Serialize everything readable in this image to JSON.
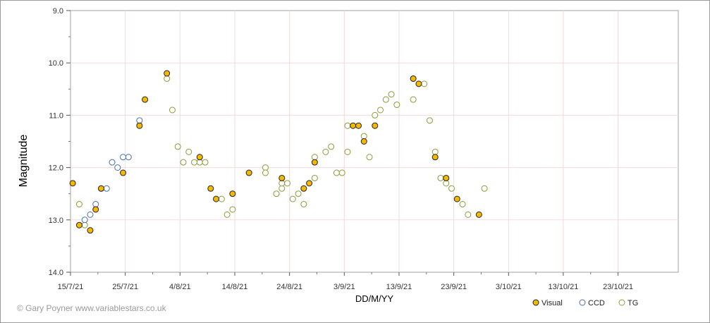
{
  "credit": "© Gary Poyner www.variablestars.co.uk",
  "chart_data": {
    "type": "scatter",
    "xlabel": "DD/M/YY",
    "ylabel": "Magnitude",
    "ylim": [
      9.0,
      14.0
    ],
    "y_inverted": true,
    "xlim": [
      "2021-07-15",
      "2021-11-03"
    ],
    "x_ticks": [
      "15/7/21",
      "25/7/21",
      "4/8/21",
      "14/8/21",
      "24/8/21",
      "3/9/21",
      "13/9/21",
      "23/9/21",
      "3/10/21",
      "13/10/21",
      "23/10/21"
    ],
    "y_ticks": [
      "9.0",
      "10.0",
      "11.0",
      "12.0",
      "13.0",
      "14.0"
    ],
    "grid": true,
    "legend_position": "bottom-right",
    "series": [
      {
        "name": "Visual",
        "color": "#f5b800",
        "marker": "filled-circle",
        "points": [
          [
            "2021-07-15.4",
            12.3
          ],
          [
            "2021-07-16.6",
            13.1
          ],
          [
            "2021-07-18.6",
            13.2
          ],
          [
            "2021-07-19.6",
            12.8
          ],
          [
            "2021-07-20.6",
            12.4
          ],
          [
            "2021-07-24.6",
            12.1
          ],
          [
            "2021-07-27.6",
            11.2
          ],
          [
            "2021-07-28.6",
            10.7
          ],
          [
            "2021-08-01.6",
            10.2
          ],
          [
            "2021-08-07.6",
            11.8
          ],
          [
            "2021-08-09.6",
            12.4
          ],
          [
            "2021-08-10.6",
            12.6
          ],
          [
            "2021-08-13.6",
            12.5
          ],
          [
            "2021-08-16.6",
            12.1
          ],
          [
            "2021-08-22.6",
            12.2
          ],
          [
            "2021-08-26.6",
            12.4
          ],
          [
            "2021-08-27.6",
            12.3
          ],
          [
            "2021-08-28.6",
            11.9
          ],
          [
            "2021-09-04.6",
            11.2
          ],
          [
            "2021-09-05.6",
            11.2
          ],
          [
            "2021-09-06.6",
            11.5
          ],
          [
            "2021-09-08.6",
            11.2
          ],
          [
            "2021-09-15.6",
            10.3
          ],
          [
            "2021-09-16.6",
            10.4
          ],
          [
            "2021-09-19.6",
            11.8
          ],
          [
            "2021-09-21.6",
            12.2
          ],
          [
            "2021-09-23.6",
            12.6
          ],
          [
            "2021-09-27.6",
            12.9
          ]
        ]
      },
      {
        "name": "CCD",
        "color": "#4a6fa5",
        "marker": "open-circle",
        "points": [
          [
            "2021-07-17.6",
            13.0
          ],
          [
            "2021-07-18.6",
            12.9
          ],
          [
            "2021-07-19.6",
            12.7
          ],
          [
            "2021-07-20.6",
            12.4
          ],
          [
            "2021-07-21.6",
            12.4
          ],
          [
            "2021-07-22.6",
            11.9
          ],
          [
            "2021-07-23.6",
            12.0
          ],
          [
            "2021-07-24.6",
            11.8
          ],
          [
            "2021-07-25.6",
            11.8
          ],
          [
            "2021-07-27.6",
            11.1
          ]
        ]
      },
      {
        "name": "TG",
        "color": "#8a9a3a",
        "marker": "open-circle",
        "points": [
          [
            "2021-07-16.6",
            12.7
          ],
          [
            "2021-07-17.6",
            13.1
          ],
          [
            "2021-08-01.6",
            10.3
          ],
          [
            "2021-08-02.6",
            10.9
          ],
          [
            "2021-08-03.6",
            11.6
          ],
          [
            "2021-08-04.6",
            11.9
          ],
          [
            "2021-08-05.6",
            11.7
          ],
          [
            "2021-08-06.6",
            11.9
          ],
          [
            "2021-08-07.6",
            11.9
          ],
          [
            "2021-08-08.6",
            11.9
          ],
          [
            "2021-08-11.6",
            12.6
          ],
          [
            "2021-08-12.6",
            12.9
          ],
          [
            "2021-08-13.6",
            12.8
          ],
          [
            "2021-08-19.6",
            12.0
          ],
          [
            "2021-08-19.6",
            12.1
          ],
          [
            "2021-08-21.6",
            12.5
          ],
          [
            "2021-08-22.6",
            12.4
          ],
          [
            "2021-08-22.6",
            12.3
          ],
          [
            "2021-08-23.6",
            12.3
          ],
          [
            "2021-08-24.6",
            12.6
          ],
          [
            "2021-08-25.6",
            12.5
          ],
          [
            "2021-08-26.6",
            12.7
          ],
          [
            "2021-08-28.6",
            11.8
          ],
          [
            "2021-08-28.6",
            12.2
          ],
          [
            "2021-08-30.6",
            11.7
          ],
          [
            "2021-08-31.6",
            11.6
          ],
          [
            "2021-09-01.6",
            12.1
          ],
          [
            "2021-09-02.6",
            12.1
          ],
          [
            "2021-09-03.6",
            11.2
          ],
          [
            "2021-09-03.6",
            11.7
          ],
          [
            "2021-09-06.6",
            11.4
          ],
          [
            "2021-09-07.6",
            11.8
          ],
          [
            "2021-09-08.6",
            11.0
          ],
          [
            "2021-09-09.6",
            10.9
          ],
          [
            "2021-09-10.6",
            10.7
          ],
          [
            "2021-09-11.6",
            10.6
          ],
          [
            "2021-09-12.6",
            10.8
          ],
          [
            "2021-09-15.6",
            10.3
          ],
          [
            "2021-09-15.6",
            10.7
          ],
          [
            "2021-09-17.6",
            10.4
          ],
          [
            "2021-09-18.6",
            11.1
          ],
          [
            "2021-09-19.6",
            11.7
          ],
          [
            "2021-09-20.6",
            12.2
          ],
          [
            "2021-09-21.6",
            12.3
          ],
          [
            "2021-09-22.6",
            12.4
          ],
          [
            "2021-09-24.6",
            12.7
          ],
          [
            "2021-09-25.6",
            12.9
          ],
          [
            "2021-09-28.6",
            12.4
          ]
        ]
      }
    ]
  }
}
